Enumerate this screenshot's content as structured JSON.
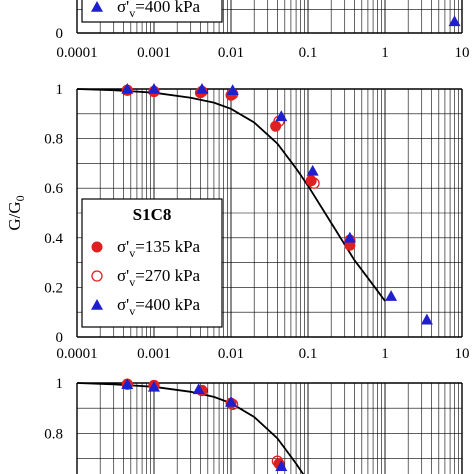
{
  "chart_data": [
    {
      "type": "scatter",
      "panel": "top (cropped)",
      "x_scale": "log",
      "xlim": [
        0.0001,
        10
      ],
      "x_tick_labels": [
        "0.0001",
        "0.001",
        "0.01",
        "0.1",
        "1",
        "10"
      ],
      "y_tick_labels": [
        "0"
      ],
      "legend": {
        "entries": [
          "σ'v=400 kPa"
        ]
      },
      "series": [
        {
          "name": "σ'v=400 kPa",
          "marker": "filled-triangle",
          "color": "#1f1fd0",
          "points": [
            [
              8.0,
              0.05
            ]
          ]
        }
      ]
    },
    {
      "type": "scatter",
      "panel": "middle",
      "x_scale": "log",
      "xlim": [
        0.0001,
        10
      ],
      "ylim": [
        0,
        1
      ],
      "ylabel": "G/G0",
      "x_tick_labels": [
        "0.0001",
        "0.001",
        "0.01",
        "0.1",
        "1",
        "10"
      ],
      "y_tick_labels": [
        "0",
        "0.2",
        "0.4",
        "0.6",
        "0.8",
        "1"
      ],
      "grid": true,
      "legend": {
        "title": "S1C8",
        "position": "left",
        "entries": [
          "σ'v=135 kPa",
          "σ'v=270 kPa",
          "σ'v=400 kPa"
        ]
      },
      "series": [
        {
          "name": "σ'v=135 kPa",
          "marker": "filled-circle",
          "color": "#e02020",
          "points": [
            [
              0.00045,
              0.995
            ],
            [
              0.001,
              0.99
            ],
            [
              0.004,
              0.985
            ],
            [
              0.01,
              0.975
            ],
            [
              0.038,
              0.85
            ],
            [
              0.11,
              0.63
            ],
            [
              0.35,
              0.37
            ]
          ]
        },
        {
          "name": "σ'v=270 kPa",
          "marker": "open-circle",
          "color": "#e02020",
          "points": [
            [
              0.00045,
              0.995
            ],
            [
              0.001,
              0.99
            ],
            [
              0.0042,
              0.99
            ],
            [
              0.0105,
              0.98
            ],
            [
              0.042,
              0.87
            ],
            [
              0.12,
              0.62
            ],
            [
              0.35,
              0.39
            ]
          ]
        },
        {
          "name": "σ'v=400 kPa",
          "marker": "filled-triangle",
          "color": "#1f1fd0",
          "points": [
            [
              0.00045,
              1.0
            ],
            [
              0.001,
              1.0
            ],
            [
              0.0042,
              1.0
            ],
            [
              0.0105,
              0.995
            ],
            [
              0.045,
              0.89
            ],
            [
              0.115,
              0.67
            ],
            [
              0.35,
              0.4
            ],
            [
              1.2,
              0.165
            ],
            [
              3.5,
              0.07
            ]
          ]
        }
      ],
      "curve": {
        "color": "#000000",
        "points": [
          [
            0.0001,
            1.0
          ],
          [
            0.0003,
            0.995
          ],
          [
            0.001,
            0.985
          ],
          [
            0.003,
            0.965
          ],
          [
            0.006,
            0.945
          ],
          [
            0.01,
            0.92
          ],
          [
            0.02,
            0.865
          ],
          [
            0.04,
            0.78
          ],
          [
            0.07,
            0.68
          ],
          [
            0.1,
            0.61
          ],
          [
            0.2,
            0.46
          ],
          [
            0.4,
            0.31
          ],
          [
            0.7,
            0.21
          ],
          [
            1.0,
            0.145
          ]
        ]
      }
    },
    {
      "type": "scatter",
      "panel": "bottom (cropped)",
      "x_scale": "log",
      "xlim": [
        0.0001,
        10
      ],
      "y_tick_labels": [
        "1",
        "0.8"
      ],
      "grid": true,
      "series": [
        {
          "name": "σ'v=135 kPa",
          "marker": "filled-circle",
          "color": "#e02020",
          "points": [
            [
              0.00045,
              0.995
            ],
            [
              0.001,
              0.99
            ],
            [
              0.0042,
              0.97
            ],
            [
              0.01,
              0.92
            ],
            [
              0.042,
              0.68
            ]
          ]
        },
        {
          "name": "σ'v=270 kPa",
          "marker": "open-circle",
          "color": "#e02020",
          "points": [
            [
              0.00045,
              0.995
            ],
            [
              0.001,
              0.99
            ],
            [
              0.0042,
              0.97
            ],
            [
              0.0105,
              0.915
            ],
            [
              0.04,
              0.69
            ]
          ]
        },
        {
          "name": "σ'v=400 kPa",
          "marker": "filled-triangle",
          "color": "#1f1fd0",
          "points": [
            [
              0.00045,
              0.995
            ],
            [
              0.001,
              0.985
            ],
            [
              0.0038,
              0.975
            ],
            [
              0.01,
              0.925
            ],
            [
              0.045,
              0.67
            ]
          ]
        }
      ],
      "curve": {
        "color": "#000000",
        "points": [
          [
            0.0001,
            1.0
          ],
          [
            0.0003,
            0.995
          ],
          [
            0.001,
            0.985
          ],
          [
            0.003,
            0.965
          ],
          [
            0.006,
            0.945
          ],
          [
            0.01,
            0.92
          ],
          [
            0.02,
            0.865
          ],
          [
            0.04,
            0.78
          ],
          [
            0.07,
            0.68
          ],
          [
            0.1,
            0.61
          ]
        ]
      }
    }
  ]
}
